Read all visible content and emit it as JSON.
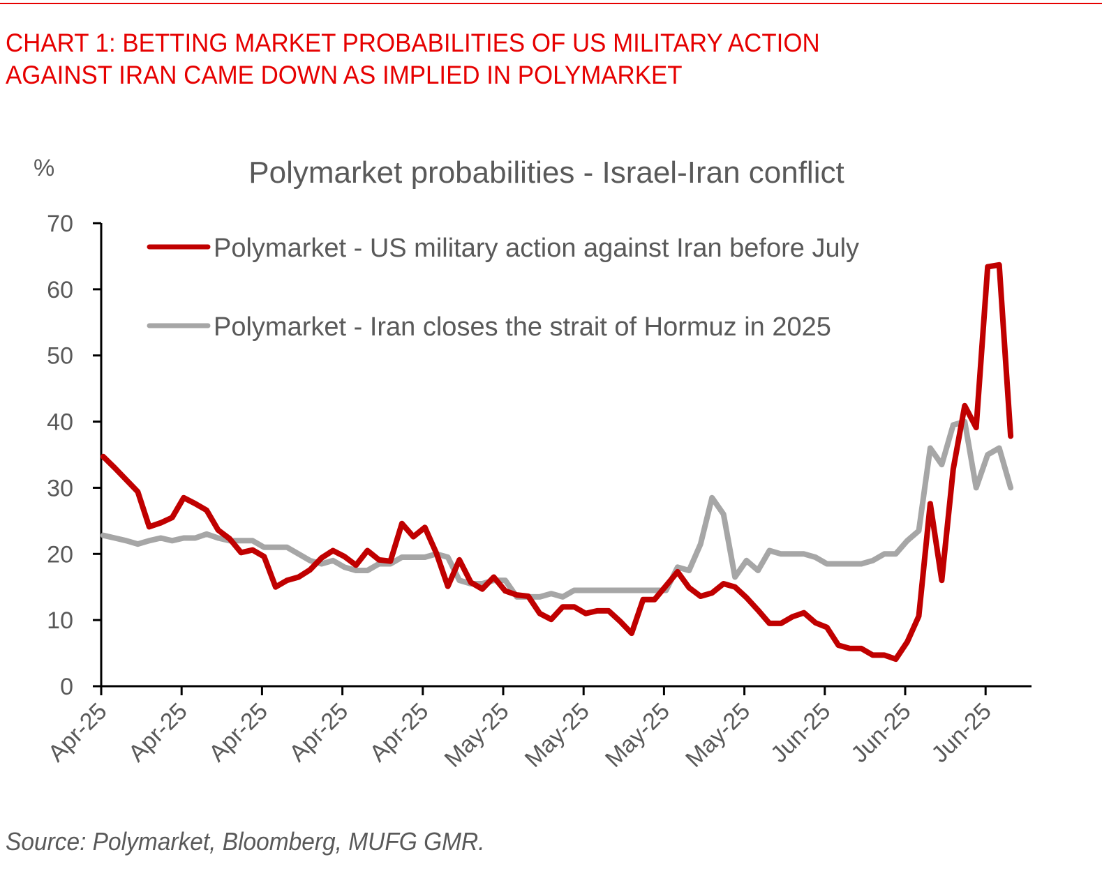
{
  "header": {
    "title_line1": "CHART 1: BETTING MARKET PROBABILITIES OF US MILITARY ACTION",
    "title_line2": "AGAINST IRAN CAME DOWN AS IMPLIED IN POLYMARKET",
    "accent_color": "#e60000"
  },
  "footer": {
    "source": "Source: Polymarket, Bloomberg, MUFG GMR."
  },
  "chart_data": {
    "type": "line",
    "title": "Polymarket probabilities - Israel-Iran conflict",
    "ylabel": "%",
    "xlabel": "",
    "ylim": [
      0,
      70
    ],
    "yticks": [
      0,
      10,
      20,
      30,
      40,
      50,
      60,
      70
    ],
    "xtick_labels": [
      "Apr-25",
      "Apr-25",
      "Apr-25",
      "Apr-25",
      "Apr-25",
      "May-25",
      "May-25",
      "May-25",
      "May-25",
      "Jun-25",
      "Jun-25",
      "Jun-25"
    ],
    "points_per_tick": 7,
    "grid": false,
    "legend_position": "top-left inside",
    "series": [
      {
        "name": "Polymarket - US military action against Iran before July",
        "color": "#c00000",
        "values": [
          34.7,
          33.0,
          31.2,
          29.4,
          24.1,
          24.7,
          25.5,
          28.5,
          27.6,
          26.6,
          23.6,
          22.3,
          20.2,
          20.6,
          19.6,
          15.0,
          16.0,
          16.5,
          17.6,
          19.4,
          20.5,
          19.6,
          18.3,
          20.5,
          19.1,
          18.9,
          24.6,
          22.6,
          24.0,
          20.1,
          15.1,
          19.1,
          15.7,
          14.7,
          16.5,
          14.4,
          13.8,
          13.6,
          11.0,
          10.1,
          12.0,
          12.0,
          11.0,
          11.4,
          11.4,
          9.8,
          8.0,
          13.1,
          13.1,
          15.2,
          17.3,
          14.9,
          13.6,
          14.1,
          15.5,
          15.0,
          13.4,
          11.5,
          9.5,
          9.5,
          10.5,
          11.1,
          9.6,
          8.9,
          6.2,
          5.7,
          5.7,
          4.7,
          4.7,
          4.1,
          6.7,
          10.6,
          27.6,
          16.0,
          32.8,
          42.4,
          39.1,
          63.4,
          63.7,
          37.8
        ]
      },
      {
        "name": "Polymarket - Iran closes the strait of Hormuz in 2025",
        "color": "#a6a6a6",
        "values": [
          22.8,
          22.4,
          22.0,
          21.5,
          22.0,
          22.4,
          22.0,
          22.4,
          22.4,
          23.0,
          22.4,
          22.0,
          22.0,
          22.0,
          21.0,
          21.0,
          21.0,
          20.0,
          19.0,
          18.5,
          19.0,
          18.0,
          17.5,
          17.5,
          18.5,
          18.5,
          19.5,
          19.5,
          19.5,
          20.0,
          19.5,
          16.0,
          15.5,
          15.5,
          16.0,
          16.0,
          13.5,
          13.5,
          13.5,
          14.0,
          13.5,
          14.5,
          14.5,
          14.5,
          14.5,
          14.5,
          14.5,
          14.5,
          14.5,
          14.5,
          18.0,
          17.5,
          21.5,
          28.5,
          26.0,
          16.5,
          19.0,
          17.5,
          20.5,
          20.0,
          20.0,
          20.0,
          19.5,
          18.5,
          18.5,
          18.5,
          18.5,
          19.0,
          20.0,
          20.0,
          22.0,
          23.5,
          36.0,
          33.5,
          39.5,
          40.0,
          30.0,
          35.0,
          36.0,
          30.0
        ]
      }
    ]
  }
}
